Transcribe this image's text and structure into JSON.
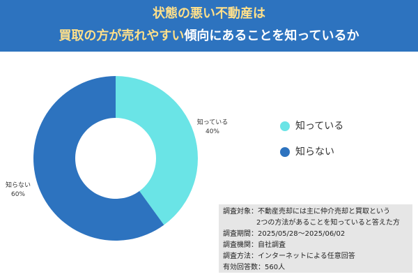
{
  "header": {
    "title_line1": "状態の悪い不動産は",
    "title_line2_highlight": "買取の方が売れやすい",
    "title_line2_rest": "傾向にあることを知っているか"
  },
  "colors": {
    "banner": "#2d73bf",
    "title_highlight": "#ffe08a",
    "title_text": "#ffffff",
    "series_know": "#6ae4e6",
    "series_dont_know": "#2d73bf"
  },
  "chart_data": {
    "type": "pie",
    "donut": true,
    "title": "",
    "slices": [
      {
        "label": "知っている",
        "value": 40,
        "value_label": "40%",
        "color": "#6ae4e6"
      },
      {
        "label": "知らない",
        "value": 60,
        "value_label": "60%",
        "color": "#2d73bf"
      }
    ],
    "legend_position": "right"
  },
  "legend": {
    "items": [
      {
        "label": "知っている",
        "color": "#6ae4e6"
      },
      {
        "label": "知らない",
        "color": "#2d73bf"
      }
    ]
  },
  "survey": {
    "line1": "調査対象：不動産売却には主に仲介売却と買取という",
    "line2": "2つの方法があることを知っていると答えた方",
    "line3": "調査期間：2025/05/28～2025/06/02",
    "line4": "調査機関：自社調査",
    "line5": "調査方法：インターネットによる任意回答",
    "line6": "有効回答数：560人"
  }
}
